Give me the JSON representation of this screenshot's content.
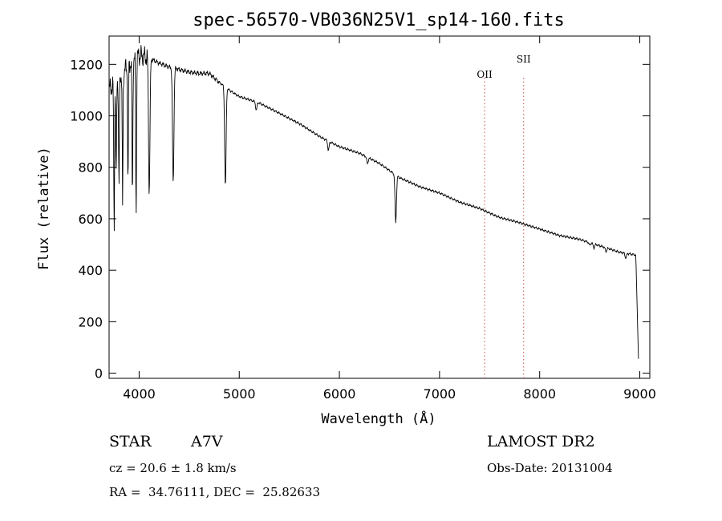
{
  "chart_data": {
    "type": "line",
    "title": "spec-56570-VB036N25V1_sp14-160.fits",
    "xlabel": "Wavelength (Å)",
    "ylabel": "Flux (relative)",
    "xlim": [
      3700,
      9100
    ],
    "ylim": [
      -20,
      1310
    ],
    "x_ticks": [
      4000,
      5000,
      6000,
      7000,
      8000,
      9000
    ],
    "y_ticks": [
      0,
      200,
      400,
      600,
      800,
      1000,
      1200
    ],
    "grid": false,
    "continuum": [
      [
        3700,
        1100
      ],
      [
        3800,
        1150
      ],
      [
        3900,
        1200
      ],
      [
        4000,
        1235
      ],
      [
        4100,
        1225
      ],
      [
        4200,
        1205
      ],
      [
        4300,
        1190
      ],
      [
        4400,
        1180
      ],
      [
        4500,
        1170
      ],
      [
        4600,
        1165
      ],
      [
        4700,
        1165
      ],
      [
        4800,
        1130
      ],
      [
        4900,
        1100
      ],
      [
        5000,
        1075
      ],
      [
        5200,
        1050
      ],
      [
        5400,
        1010
      ],
      [
        5600,
        970
      ],
      [
        5800,
        920
      ],
      [
        6000,
        880
      ],
      [
        6200,
        855
      ],
      [
        6400,
        815
      ],
      [
        6600,
        760
      ],
      [
        6800,
        725
      ],
      [
        7000,
        700
      ],
      [
        7200,
        665
      ],
      [
        7400,
        640
      ],
      [
        7600,
        605
      ],
      [
        7800,
        585
      ],
      [
        8000,
        560
      ],
      [
        8200,
        535
      ],
      [
        8400,
        520
      ],
      [
        8600,
        495
      ],
      [
        8800,
        470
      ],
      [
        8950,
        460
      ]
    ],
    "absorption_lines": [
      {
        "x": 3750,
        "depth": 0.5
      },
      {
        "x": 3770,
        "depth": 0.35
      },
      {
        "x": 3798,
        "depth": 0.38
      },
      {
        "x": 3835,
        "depth": 0.45
      },
      {
        "x": 3889,
        "depth": 0.4
      },
      {
        "x": 3933,
        "depth": 0.45
      },
      {
        "x": 3970,
        "depth": 0.5
      },
      {
        "x": 4101,
        "depth": 0.42
      },
      {
        "x": 4340,
        "depth": 0.38
      },
      {
        "x": 4861,
        "depth": 0.35
      },
      {
        "x": 5170,
        "depth": 0.03
      },
      {
        "x": 5890,
        "depth": 0.04
      },
      {
        "x": 6280,
        "depth": 0.03
      },
      {
        "x": 6563,
        "depth": 0.24
      },
      {
        "x": 8498,
        "depth": 0.02
      },
      {
        "x": 8542,
        "depth": 0.03
      },
      {
        "x": 8662,
        "depth": 0.03
      },
      {
        "x": 8860,
        "depth": 0.04
      }
    ],
    "emission_markers": [
      {
        "label": "OII",
        "x": 7450
      },
      {
        "label": "SII",
        "x": 7840
      }
    ]
  },
  "info": {
    "class_label": "STAR",
    "subclass": "A7V",
    "survey": "LAMOST DR2",
    "cz": "cz = 20.6 ± 1.8 km/s",
    "obs_date": "Obs-Date: 20131004",
    "coords": "RA =  34.76111, DEC =  25.82633"
  }
}
